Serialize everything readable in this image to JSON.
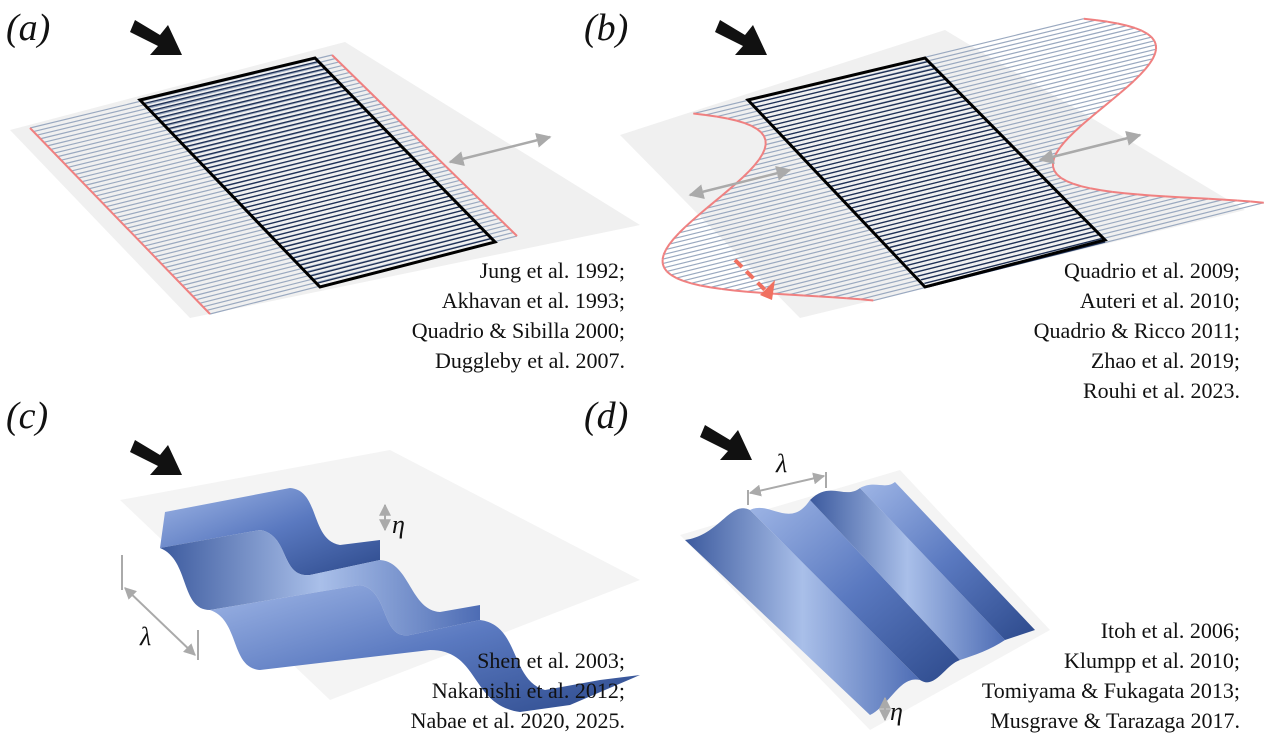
{
  "panels": [
    {
      "label": "(a)",
      "references": [
        "Jung et al. 1992;",
        "Akhavan et al. 1993;",
        "Quadrio & Sibilla 2000;",
        "Duggleby et al. 2007."
      ]
    },
    {
      "label": "(b)",
      "references": [
        "Quadrio et al. 2009;",
        "Auteri et al. 2010;",
        "Quadrio & Ricco 2011;",
        "Zhao et al. 2019;",
        "Rouhi et al. 2023."
      ]
    },
    {
      "label": "(c)",
      "references": [
        "Shen et al. 2003;",
        "Nakanishi et al. 2012;",
        "Nabae et al. 2020, 2025."
      ],
      "wavelength_symbol": "λ",
      "amplitude_symbol": "η"
    },
    {
      "label": "(d)",
      "references": [
        "Itoh et al. 2006;",
        "Klumpp et al. 2010;",
        "Tomiyama & Fukagata 2013;",
        "Musgrave & Tarazaga 2017."
      ],
      "wavelength_symbol": "λ",
      "amplitude_symbol": "η"
    }
  ]
}
